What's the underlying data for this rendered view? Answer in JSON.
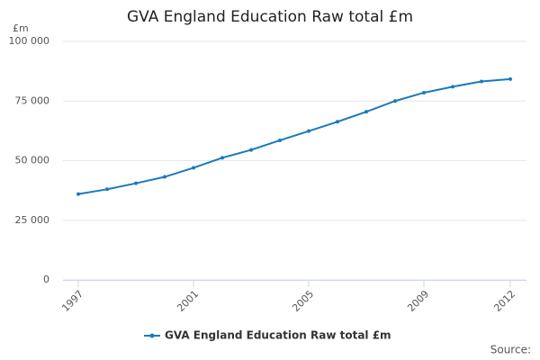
{
  "chart_data": {
    "type": "line",
    "title": "GVA England Education Raw total £m",
    "y_axis_label": "£m",
    "x": [
      1997,
      1998,
      1999,
      2000,
      2001,
      2002,
      2003,
      2004,
      2005,
      2006,
      2007,
      2008,
      2009,
      2010,
      2011,
      2012
    ],
    "series": [
      {
        "name": "GVA England Education Raw total £m",
        "color": "#1a7ab9",
        "values": [
          36000,
          38000,
          40500,
          43200,
          47000,
          51200,
          54500,
          58500,
          62400,
          66300,
          70500,
          75000,
          78500,
          81000,
          83200,
          84200
        ]
      }
    ],
    "xlim": [
      1997,
      2012
    ],
    "xticks": [
      1997,
      2001,
      2005,
      2009,
      2012
    ],
    "ylim": [
      0,
      100000
    ],
    "yticks": [
      0,
      {
        "value": 25000,
        "label": "25 000"
      },
      {
        "value": 50000,
        "label": "50 000"
      },
      {
        "value": 75000,
        "label": "75 000"
      },
      {
        "value": 100000,
        "label": "100 000"
      }
    ],
    "grid": true,
    "legend": "bottom",
    "source": "Source:"
  }
}
